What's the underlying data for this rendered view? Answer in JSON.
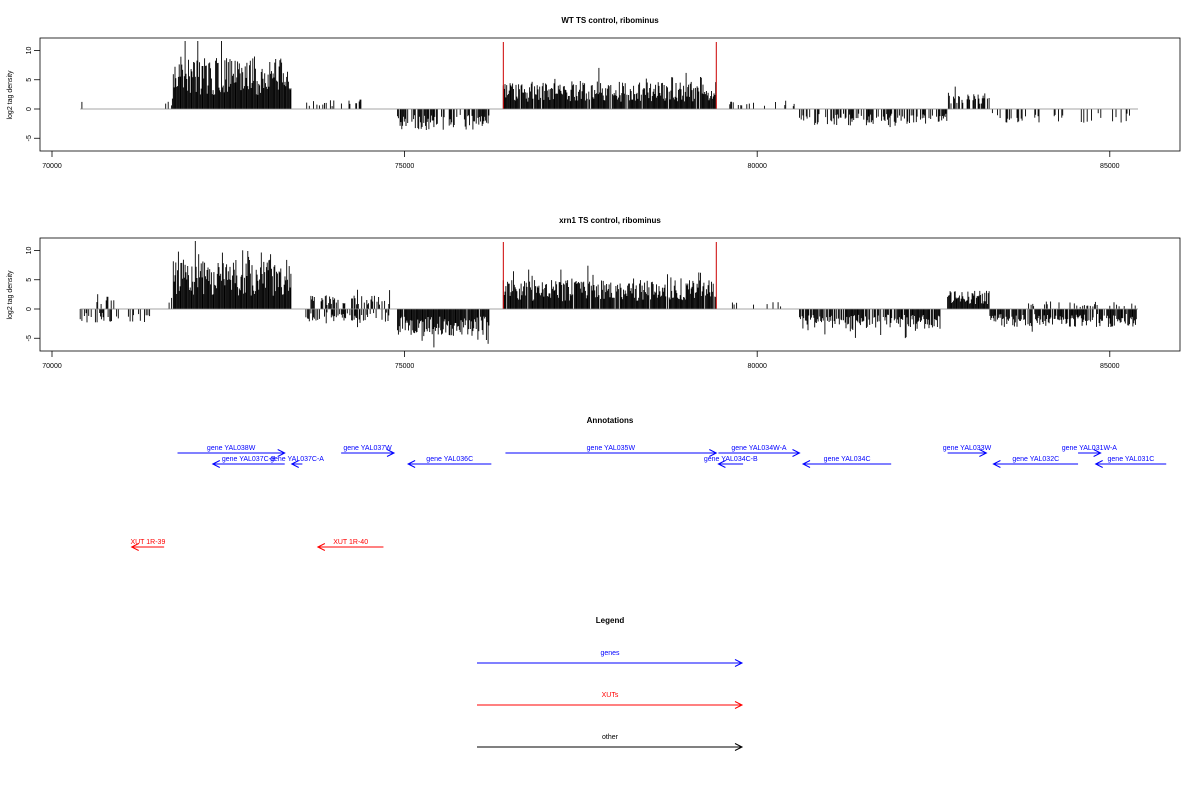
{
  "chart_data": [
    {
      "type": "bar",
      "title": "WT TS control, ribominus",
      "ylabel": "log2 tag density",
      "xlim": [
        70000,
        85800
      ],
      "ylim": [
        -8,
        12
      ],
      "xticks": [
        70000,
        75000,
        80000,
        85000
      ],
      "yticks": [
        -5,
        0,
        5,
        10
      ],
      "highlight_lines": [
        76400,
        79420
      ],
      "highlight_color": "#cc0000",
      "bar_color": "#000000",
      "baseline_color": "#888888",
      "segments": [
        {
          "from": 70400,
          "to": 70600,
          "level": 1.2,
          "sign": 1,
          "density": 0.15
        },
        {
          "from": 71600,
          "to": 71720,
          "level": 1.5,
          "sign": 1,
          "density": 0.3
        },
        {
          "from": 71720,
          "to": 73400,
          "level": 6.8,
          "sign": 1,
          "density": 1.0
        },
        {
          "from": 73600,
          "to": 74400,
          "level": 1.2,
          "sign": 1,
          "density": 0.2
        },
        {
          "from": 74900,
          "to": 76200,
          "level": -2.8,
          "sign": -1,
          "density": 0.7
        },
        {
          "from": 76400,
          "to": 79420,
          "level": 3.6,
          "sign": 1,
          "density": 0.95
        },
        {
          "from": 79600,
          "to": 80600,
          "level": 1.0,
          "sign": 1,
          "density": 0.15
        },
        {
          "from": 80600,
          "to": 82700,
          "level": -2.2,
          "sign": -1,
          "density": 0.5
        },
        {
          "from": 82700,
          "to": 83300,
          "level": 2.2,
          "sign": 1,
          "density": 0.6
        },
        {
          "from": 83300,
          "to": 85400,
          "level": -1.8,
          "sign": -1,
          "density": 0.3
        }
      ]
    },
    {
      "type": "bar",
      "title": "xrn1 TS control, ribominus",
      "ylabel": "log2 tag density",
      "xlim": [
        70000,
        85800
      ],
      "ylim": [
        -8,
        12
      ],
      "xticks": [
        70000,
        75000,
        80000,
        85000
      ],
      "yticks": [
        -5,
        0,
        5,
        10
      ],
      "highlight_lines": [
        76400,
        79420
      ],
      "highlight_color": "#cc0000",
      "bar_color": "#000000",
      "baseline_color": "#888888",
      "segments": [
        {
          "from": 70400,
          "to": 71400,
          "level": -1.8,
          "sign": -1,
          "density": 0.35
        },
        {
          "from": 70600,
          "to": 70900,
          "level": 2.0,
          "sign": 1,
          "density": 0.3
        },
        {
          "from": 71600,
          "to": 71720,
          "level": 1.5,
          "sign": 1,
          "density": 0.3
        },
        {
          "from": 71720,
          "to": 73400,
          "level": 6.5,
          "sign": 1,
          "density": 1.0
        },
        {
          "from": 73600,
          "to": 74800,
          "level": 1.8,
          "sign": 1,
          "density": 0.5
        },
        {
          "from": 73600,
          "to": 74800,
          "level": -1.6,
          "sign": -1,
          "density": 0.5
        },
        {
          "from": 74900,
          "to": 76200,
          "level": -3.6,
          "sign": -1,
          "density": 0.95
        },
        {
          "from": 76400,
          "to": 79420,
          "level": 3.8,
          "sign": 1,
          "density": 0.95
        },
        {
          "from": 79600,
          "to": 80400,
          "level": 1.0,
          "sign": 1,
          "density": 0.15
        },
        {
          "from": 80600,
          "to": 82600,
          "level": -2.6,
          "sign": -1,
          "density": 0.8
        },
        {
          "from": 82700,
          "to": 83300,
          "level": 2.4,
          "sign": 1,
          "density": 0.9
        },
        {
          "from": 83300,
          "to": 85400,
          "level": -2.4,
          "sign": -1,
          "density": 0.8
        },
        {
          "from": 83800,
          "to": 85400,
          "level": 1.0,
          "sign": 1,
          "density": 0.25
        }
      ]
    }
  ],
  "annotations": {
    "title": "Annotations",
    "features": [
      {
        "label": "gene YAL038W",
        "start": 71780,
        "end": 73300,
        "strand": "+",
        "row": 0,
        "kind": "gene"
      },
      {
        "label": "gene YAL037C-B",
        "start": 72280,
        "end": 73300,
        "strand": "-",
        "row": 1,
        "kind": "gene"
      },
      {
        "label": "gene YAL037C-A",
        "start": 73400,
        "end": 73550,
        "strand": "-",
        "row": 1,
        "kind": "gene"
      },
      {
        "label": "gene YAL037W",
        "start": 74100,
        "end": 74850,
        "strand": "+",
        "row": 0,
        "kind": "gene"
      },
      {
        "label": "gene YAL036C",
        "start": 75050,
        "end": 76230,
        "strand": "-",
        "row": 1,
        "kind": "gene"
      },
      {
        "label": "gene YAL035W",
        "start": 76430,
        "end": 79420,
        "strand": "+",
        "row": 0,
        "kind": "gene"
      },
      {
        "label": "gene YAL034C-B",
        "start": 79450,
        "end": 79800,
        "strand": "-",
        "row": 1,
        "kind": "gene"
      },
      {
        "label": "gene YAL034W-A",
        "start": 79450,
        "end": 80600,
        "strand": "+",
        "row": 0,
        "kind": "gene"
      },
      {
        "label": "gene YAL034C",
        "start": 80650,
        "end": 81900,
        "strand": "-",
        "row": 1,
        "kind": "gene"
      },
      {
        "label": "gene YAL033W",
        "start": 82700,
        "end": 83250,
        "strand": "+",
        "row": 0,
        "kind": "gene"
      },
      {
        "label": "gene YAL032C",
        "start": 83350,
        "end": 84550,
        "strand": "-",
        "row": 1,
        "kind": "gene"
      },
      {
        "label": "gene YAL031W-A",
        "start": 84550,
        "end": 84870,
        "strand": "+",
        "row": 0,
        "kind": "gene"
      },
      {
        "label": "gene YAL031C",
        "start": 84800,
        "end": 85800,
        "strand": "-",
        "row": 1,
        "kind": "gene"
      },
      {
        "label": "XUT 1R-39",
        "start": 71130,
        "end": 71590,
        "strand": "-",
        "row": 2,
        "kind": "xut"
      },
      {
        "label": "XUT 1R-40",
        "start": 73770,
        "end": 74700,
        "strand": "-",
        "row": 2,
        "kind": "xut"
      }
    ]
  },
  "legend": {
    "title": "Legend",
    "items": [
      {
        "label": "genes",
        "color": "#0000ff"
      },
      {
        "label": "XUTs",
        "color": "#ff0000"
      },
      {
        "label": "other",
        "color": "#000000"
      }
    ]
  },
  "colors": {
    "gene": "#0000ff",
    "xut": "#ff0000",
    "other": "#000000",
    "frame": "#000000"
  }
}
